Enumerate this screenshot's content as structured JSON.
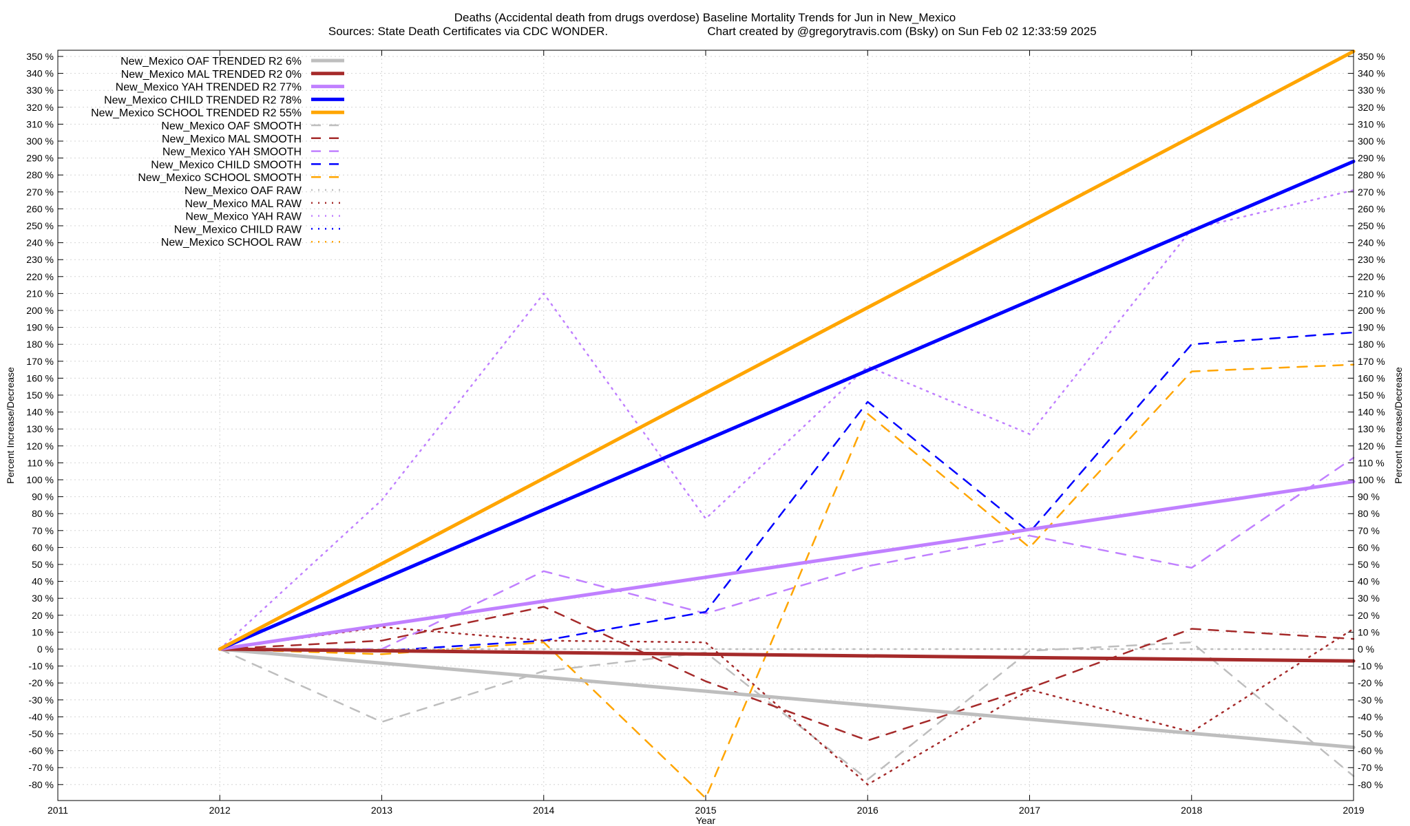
{
  "chart_data": {
    "type": "line",
    "title": "Deaths (Accidental death from drugs overdose)  Baseline Mortality Trends for Jun in New_Mexico",
    "subtitle_left": "Sources: State Death Certificates via CDC WONDER.",
    "subtitle_right": "Chart created by @gregorytravis.com (Bsky) on Sun Feb 02 12:33:59 2025",
    "xlabel": "Year",
    "ylabel": "Percent Increase/Decrease",
    "xlim": [
      2011,
      2019
    ],
    "ylim": [
      -85,
      355
    ],
    "x_ticks": [
      "2011",
      "2012",
      "2013",
      "2014",
      "2015",
      "2016",
      "2017",
      "2018",
      "2019"
    ],
    "y_ticks_left": [
      "350 %",
      "340 %",
      "330 %",
      "320 %",
      "310 %",
      "300 %",
      "290 %",
      "280 %",
      "270 %",
      "260 %",
      "250 %",
      "240 %",
      "230 %",
      "220 %",
      "210 %",
      "200 %",
      "190 %",
      "180 %",
      "170 %",
      "160 %",
      "150 %",
      "140 %",
      "130 %",
      "120 %",
      "110 %",
      "100 %",
      "90 %",
      "80 %",
      "70 %",
      "60 %",
      "50 %",
      "40 %",
      "30 %",
      "20 %",
      "10 %",
      "0 %",
      "-10 %",
      "-20 %",
      "-30 %",
      "-40 %",
      "-50 %",
      "-60 %",
      "-70 %",
      "-80 %"
    ],
    "y_ticks_right": [
      "350 %",
      "340 %",
      "330 %",
      "320 %",
      "310 %",
      "300 %",
      "290 %",
      "280 %",
      "270 %",
      "260 %",
      "250 %",
      "240 %",
      "230 %",
      "220 %",
      "210 %",
      "200 %",
      "190 %",
      "180 %",
      "170 %",
      "160 %",
      "150 %",
      "140 %",
      "130 %",
      "120 %",
      "110 %",
      "100 %",
      "90 %",
      "80 %",
      "70 %",
      "60 %",
      "50 %",
      "40 %",
      "30 %",
      "20 %",
      "10 %",
      "0 %",
      "-10 %",
      "-20 %",
      "-30 %",
      "-40 %",
      "-50 %",
      "-60 %",
      "-70 %",
      "-80 %"
    ],
    "grid": true,
    "legend_position": "top-left",
    "series": [
      {
        "name": "New_Mexico OAF TRENDED R2  6%",
        "style": "solid",
        "color": "#bebebe",
        "x": [
          2012,
          2019
        ],
        "values": [
          0,
          -58
        ]
      },
      {
        "name": "New_Mexico MAL TRENDED R2  0%",
        "style": "solid",
        "color": "#a52a2a",
        "x": [
          2012,
          2019
        ],
        "values": [
          0,
          -7
        ]
      },
      {
        "name": "New_Mexico YAH TRENDED R2  77%",
        "style": "solid",
        "color": "#c080ff",
        "x": [
          2012,
          2019
        ],
        "values": [
          0,
          99
        ]
      },
      {
        "name": "New_Mexico CHILD TRENDED R2  78%",
        "style": "solid",
        "color": "#0000ff",
        "x": [
          2012,
          2019
        ],
        "values": [
          0,
          288
        ]
      },
      {
        "name": "New_Mexico SCHOOL TRENDED R2  55%",
        "style": "solid",
        "color": "#ffa500",
        "x": [
          2012,
          2019
        ],
        "values": [
          0,
          353
        ]
      },
      {
        "name": "New_Mexico OAF SMOOTH",
        "style": "dashed",
        "color": "#bebebe",
        "x": [
          2012,
          2013,
          2014,
          2015,
          2016,
          2017,
          2018,
          2019
        ],
        "values": [
          0,
          -43,
          -13,
          -2,
          -77,
          -1,
          4,
          -75
        ]
      },
      {
        "name": "New_Mexico MAL SMOOTH",
        "style": "dashed",
        "color": "#a52a2a",
        "x": [
          2012,
          2013,
          2014,
          2015,
          2016,
          2017,
          2018,
          2019
        ],
        "values": [
          0,
          5,
          25,
          -19,
          -54,
          -23,
          12,
          6
        ]
      },
      {
        "name": "New_Mexico YAH SMOOTH",
        "style": "dashed",
        "color": "#c080ff",
        "x": [
          2012,
          2013,
          2014,
          2015,
          2016,
          2017,
          2018,
          2019
        ],
        "values": [
          0,
          0,
          46,
          21,
          49,
          67,
          48,
          113
        ]
      },
      {
        "name": "New_Mexico CHILD SMOOTH",
        "style": "dashed",
        "color": "#0000ff",
        "x": [
          2012,
          2013,
          2014,
          2015,
          2016,
          2017,
          2018,
          2019
        ],
        "values": [
          0,
          -1,
          5,
          22,
          146,
          69,
          180,
          187
        ]
      },
      {
        "name": "New_Mexico SCHOOL SMOOTH",
        "style": "dashed",
        "color": "#ffa500",
        "x": [
          2012,
          2013,
          2014,
          2015,
          2016,
          2017,
          2018,
          2019
        ],
        "values": [
          0,
          -3,
          4,
          -88,
          139,
          60,
          164,
          168
        ]
      },
      {
        "name": "New_Mexico OAF RAW",
        "style": "dotted",
        "color": "#bebebe",
        "x": [
          2012,
          2013,
          2014,
          2015,
          2016,
          2017,
          2018,
          2019
        ],
        "values": [
          0,
          0,
          0,
          0,
          0,
          0,
          0,
          0
        ]
      },
      {
        "name": "New_Mexico MAL RAW",
        "style": "dotted",
        "color": "#a52a2a",
        "x": [
          2012,
          2013,
          2014,
          2015,
          2016,
          2017,
          2018,
          2019
        ],
        "values": [
          0,
          13,
          5,
          4,
          -80,
          -24,
          -49,
          12
        ]
      },
      {
        "name": "New_Mexico YAH RAW",
        "style": "dotted",
        "color": "#c080ff",
        "x": [
          2012,
          2013,
          2014,
          2015,
          2016,
          2017,
          2018,
          2019
        ],
        "values": [
          0,
          88,
          210,
          77,
          167,
          127,
          248,
          271
        ]
      },
      {
        "name": "New_Mexico CHILD RAW",
        "style": "dotted",
        "color": "#0000ff",
        "x": [
          2012
        ],
        "values": [
          0
        ]
      },
      {
        "name": "New_Mexico SCHOOL RAW",
        "style": "dotted",
        "color": "#ffa500",
        "x": [
          2012
        ],
        "values": [
          0
        ]
      }
    ]
  }
}
